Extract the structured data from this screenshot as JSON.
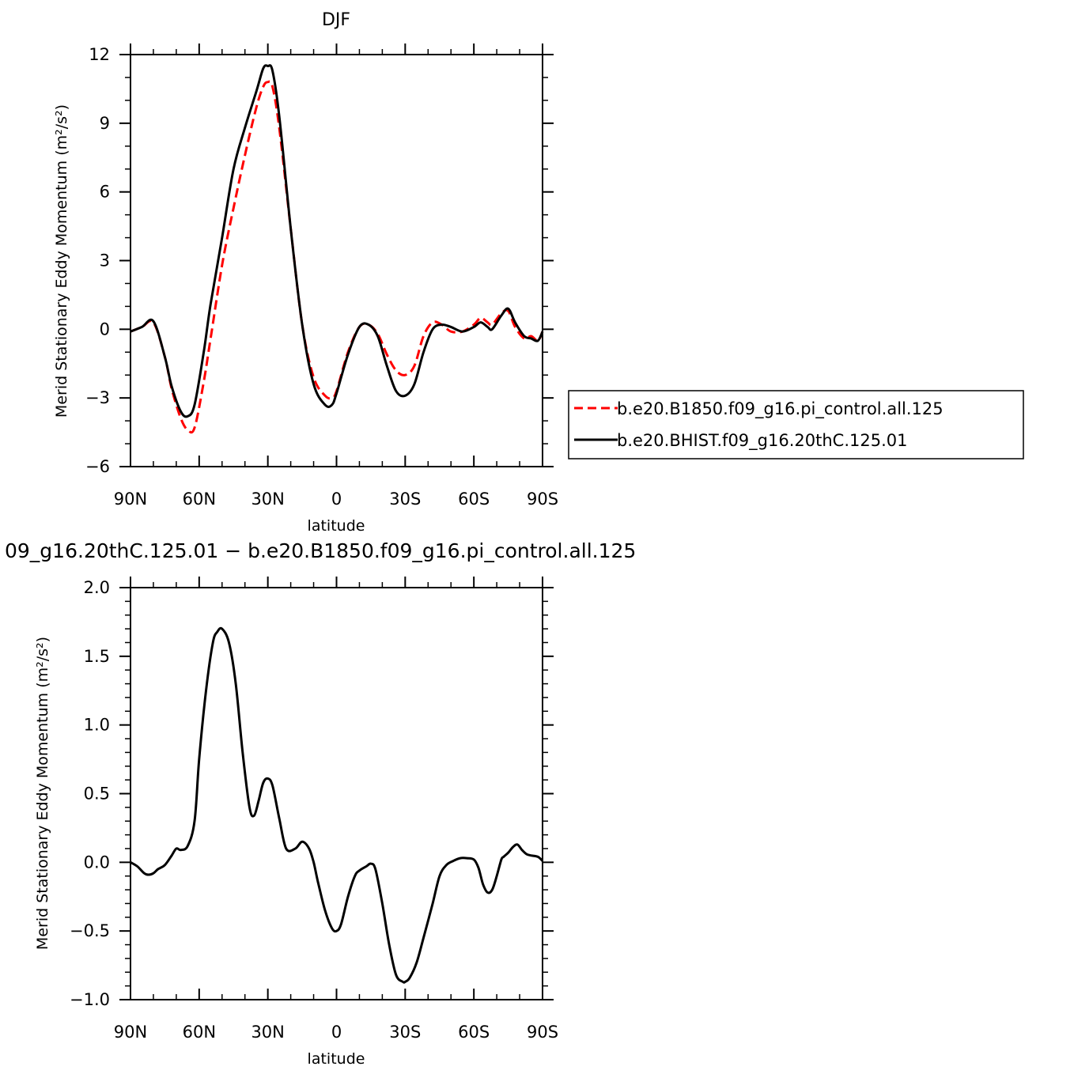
{
  "chart_data": [
    {
      "type": "line",
      "title": "DJF",
      "xlabel": "latitude",
      "ylabel": "Merid Stationary Eddy Momentum (m²/s²)",
      "xlim": [
        90,
        -90
      ],
      "ylim": [
        -6,
        12
      ],
      "x_ticks": [
        90,
        60,
        30,
        0,
        -30,
        -60,
        -90
      ],
      "x_tick_labels": [
        "90N",
        "60N",
        "30N",
        "0",
        "30S",
        "60S",
        "90S"
      ],
      "y_ticks": [
        -6,
        -3,
        0,
        3,
        6,
        9,
        12
      ],
      "y_tick_labels": [
        "−6",
        "−3",
        "0",
        "3",
        "6",
        "9",
        "12"
      ],
      "legend_placement": "right",
      "series": [
        {
          "name": "b.e20.B1850.f09_g16.pi_control.all.125",
          "color": "#ff0000",
          "dash": "dashed",
          "x": [
            90,
            85,
            80,
            75,
            72,
            68,
            65,
            62,
            58,
            55,
            50,
            45,
            40,
            35,
            32,
            30,
            28,
            25,
            20,
            15,
            10,
            5,
            2,
            0,
            -5,
            -10,
            -14,
            -18,
            -22,
            -26,
            -30,
            -34,
            -38,
            -42,
            -46,
            -50,
            -55,
            -60,
            -63,
            -66,
            -68,
            -72,
            -75,
            -78,
            -82,
            -85,
            -88,
            -90
          ],
          "y": [
            -0.1,
            0.1,
            0.3,
            -1.2,
            -2.6,
            -3.9,
            -4.4,
            -4.3,
            -2.3,
            -0.4,
            2.8,
            5.3,
            7.6,
            9.7,
            10.6,
            10.8,
            10.6,
            8.8,
            4.4,
            0.2,
            -2.1,
            -2.9,
            -3.0,
            -2.7,
            -1.0,
            0.1,
            0.2,
            -0.2,
            -1.1,
            -1.8,
            -2.0,
            -1.6,
            -0.3,
            0.3,
            0.2,
            -0.1,
            -0.1,
            0.2,
            0.5,
            0.3,
            0.2,
            0.7,
            0.8,
            0.1,
            -0.4,
            -0.3,
            -0.5,
            -0.1
          ]
        },
        {
          "name": "b.e20.BHIST.f09_g16.20thC.125.01",
          "color": "#000000",
          "dash": "solid",
          "x": [
            90,
            85,
            80,
            75,
            72,
            68,
            65,
            62,
            58,
            55,
            50,
            45,
            40,
            35,
            32,
            30,
            28,
            25,
            20,
            15,
            10,
            5,
            2,
            0,
            -5,
            -10,
            -14,
            -18,
            -22,
            -26,
            -30,
            -34,
            -38,
            -42,
            -46,
            -50,
            -55,
            -60,
            -63,
            -66,
            -68,
            -72,
            -75,
            -78,
            -82,
            -85,
            -88,
            -90
          ],
          "y": [
            -0.1,
            0.1,
            0.35,
            -1.2,
            -2.5,
            -3.6,
            -3.8,
            -3.3,
            -1.0,
            1.1,
            4.0,
            7.0,
            8.8,
            10.4,
            11.4,
            11.5,
            11.3,
            9.3,
            4.4,
            0.2,
            -2.4,
            -3.3,
            -3.3,
            -2.8,
            -1.1,
            0.1,
            0.2,
            -0.3,
            -1.6,
            -2.7,
            -2.9,
            -2.4,
            -1.0,
            0.0,
            0.2,
            0.1,
            -0.1,
            0.1,
            0.3,
            0.1,
            0.0,
            0.6,
            0.9,
            0.3,
            -0.3,
            -0.4,
            -0.5,
            -0.1
          ]
        }
      ]
    },
    {
      "type": "line",
      "title": "09_g16.20thC.125.01 − b.e20.B1850.f09_g16.pi_control.all.125",
      "xlabel": "latitude",
      "ylabel": "Merid Stationary Eddy Momentum (m²/s²)",
      "xlim": [
        90,
        -90
      ],
      "ylim": [
        -1.0,
        2.0
      ],
      "x_ticks": [
        90,
        60,
        30,
        0,
        -30,
        -60,
        -90
      ],
      "x_tick_labels": [
        "90N",
        "60N",
        "30N",
        "0",
        "30S",
        "60S",
        "90S"
      ],
      "y_ticks": [
        -1.0,
        -0.5,
        0.0,
        0.5,
        1.0,
        1.5,
        2.0
      ],
      "y_tick_labels": [
        "−1.0",
        "−0.5",
        "0.0",
        "0.5",
        "1.0",
        "1.5",
        "2.0"
      ],
      "series": [
        {
          "color": "#000000",
          "dash": "solid",
          "x": [
            90,
            87,
            84,
            82,
            80,
            78,
            75,
            72,
            70,
            68,
            65,
            62,
            60,
            57,
            54,
            52,
            50,
            47,
            44,
            41,
            38,
            36,
            34,
            32,
            30,
            28,
            25,
            22,
            18,
            15,
            12,
            10,
            8,
            5,
            2,
            0,
            -2,
            -5,
            -8,
            -10,
            -13,
            -15,
            -17,
            -20,
            -23,
            -26,
            -29,
            -30,
            -32,
            -35,
            -38,
            -42,
            -45,
            -48,
            -51,
            -54,
            -57,
            -60,
            -62,
            -64,
            -66,
            -68,
            -70,
            -72,
            -73,
            -75,
            -77,
            -79,
            -81,
            -83,
            -85,
            -88,
            -90
          ],
          "y": [
            0.0,
            -0.03,
            -0.08,
            -0.09,
            -0.08,
            -0.05,
            -0.02,
            0.05,
            0.1,
            0.09,
            0.12,
            0.3,
            0.75,
            1.25,
            1.6,
            1.68,
            1.7,
            1.6,
            1.3,
            0.8,
            0.4,
            0.34,
            0.45,
            0.58,
            0.61,
            0.56,
            0.32,
            0.1,
            0.1,
            0.15,
            0.1,
            0.0,
            -0.15,
            -0.35,
            -0.48,
            -0.5,
            -0.45,
            -0.25,
            -0.1,
            -0.06,
            -0.03,
            -0.01,
            -0.05,
            -0.3,
            -0.6,
            -0.82,
            -0.87,
            -0.87,
            -0.84,
            -0.73,
            -0.55,
            -0.3,
            -0.1,
            -0.02,
            0.01,
            0.03,
            0.03,
            0.02,
            -0.04,
            -0.16,
            -0.22,
            -0.2,
            -0.1,
            0.02,
            0.04,
            0.07,
            0.11,
            0.13,
            0.09,
            0.06,
            0.05,
            0.04,
            0.01
          ]
        }
      ]
    }
  ]
}
